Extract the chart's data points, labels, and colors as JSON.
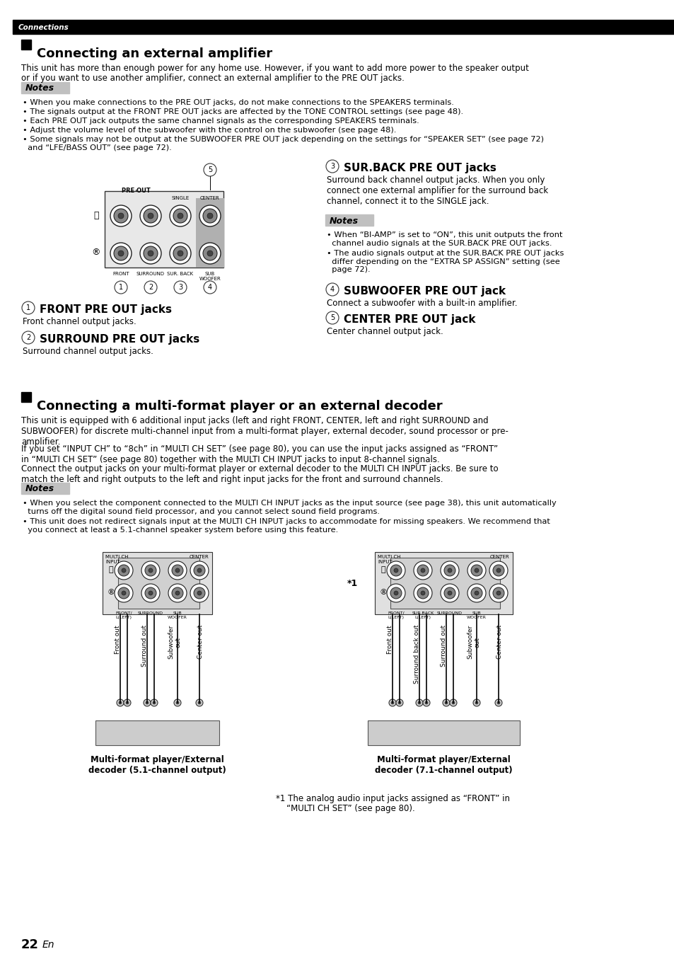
{
  "page_bg": "#ffffff",
  "header_bar_color": "#000000",
  "header_text": "Connections",
  "header_text_color": "#ffffff",
  "section1_title": "Connecting an external amplifier",
  "section1_body1": "This unit has more than enough power for any home use. However, if you want to add more power to the speaker output",
  "section1_body2": "or if you want to use another amplifier, connect an external amplifier to the PRE OUT jacks.",
  "notes_label": "Notes",
  "notes1_bullets": [
    "When you make connections to the PRE OUT jacks, do not make connections to the SPEAKERS terminals.",
    "The signals output at the FRONT PRE OUT jacks are affected by the TONE CONTROL settings (see page 48).",
    "Each PRE OUT jack outputs the same channel signals as the corresponding SPEAKERS terminals.",
    "Adjust the volume level of the subwoofer with the control on the subwoofer (see page 48).",
    "Some signals may not be output at the SUBWOOFER PRE OUT jack depending on the settings for “SPEAKER SET” (see page 72)\n  and “LFE/BASS OUT” (see page 72)."
  ],
  "item1_title": "FRONT PRE OUT jacks",
  "item1_body": "Front channel output jacks.",
  "item2_title": "SURROUND PRE OUT jacks",
  "item2_body": "Surround channel output jacks.",
  "item3_title": "SUR.BACK PRE OUT jacks",
  "item3_body": "Surround back channel output jacks. When you only\nconnect one external amplifier for the surround back\nchannel, connect it to the SINGLE jack.",
  "notes2_bullets": [
    "When “BI-AMP” is set to “ON”, this unit outputs the front\n  channel audio signals at the SUR.BACK PRE OUT jacks.",
    "The audio signals output at the SUR.BACK PRE OUT jacks\n  differ depending on the “EXTRA SP ASSIGN” setting (see\n  page 72)."
  ],
  "item4_title": "SUBWOOFER PRE OUT jack",
  "item4_body": "Connect a subwoofer with a built-in amplifier.",
  "item5_title": "CENTER PRE OUT jack",
  "item5_body": "Center channel output jack.",
  "section2_title": "Connecting a multi-format player or an external decoder",
  "section2_body1": "This unit is equipped with 6 additional input jacks (left and right FRONT, CENTER, left and right SURROUND and\nSUBWOOFER) for discrete multi-channel input from a multi-format player, external decoder, sound processor or pre-\namplifier.",
  "section2_body2": "If you set “INPUT CH” to “8ch” in “MULTI CH SET” (see page 80), you can use the input jacks assigned as “FRONT”\nin “MULTI CH SET” (see page 80) together with the MULTI CH INPUT jacks to input 8-channel signals.",
  "section2_body3": "Connect the output jacks on your multi-format player or external decoder to the MULTI CH INPUT jacks. Be sure to\nmatch the left and right outputs to the left and right input jacks for the front and surround channels.",
  "notes3_bullets": [
    "When you select the component connected to the MULTI CH INPUT jacks as the input source (see page 38), this unit automatically\n  turns off the digital sound field processor, and you cannot select sound field programs.",
    "This unit does not redirect signals input at the MULTI CH INPUT jacks to accommodate for missing speakers. We recommend that\n  you connect at least a 5.1-channel speaker system before using this feature."
  ],
  "diagram1_caption": "Multi-format player/External\ndecoder (5.1-channel output)",
  "diagram2_caption": "Multi-format player/External\ndecoder (7.1-channel output)",
  "footnote1": "*1 The analog audio input jacks assigned as “FRONT” in",
  "footnote2": "    “MULTI CH SET” (see page 80).",
  "page_num": "22",
  "page_en": "En"
}
